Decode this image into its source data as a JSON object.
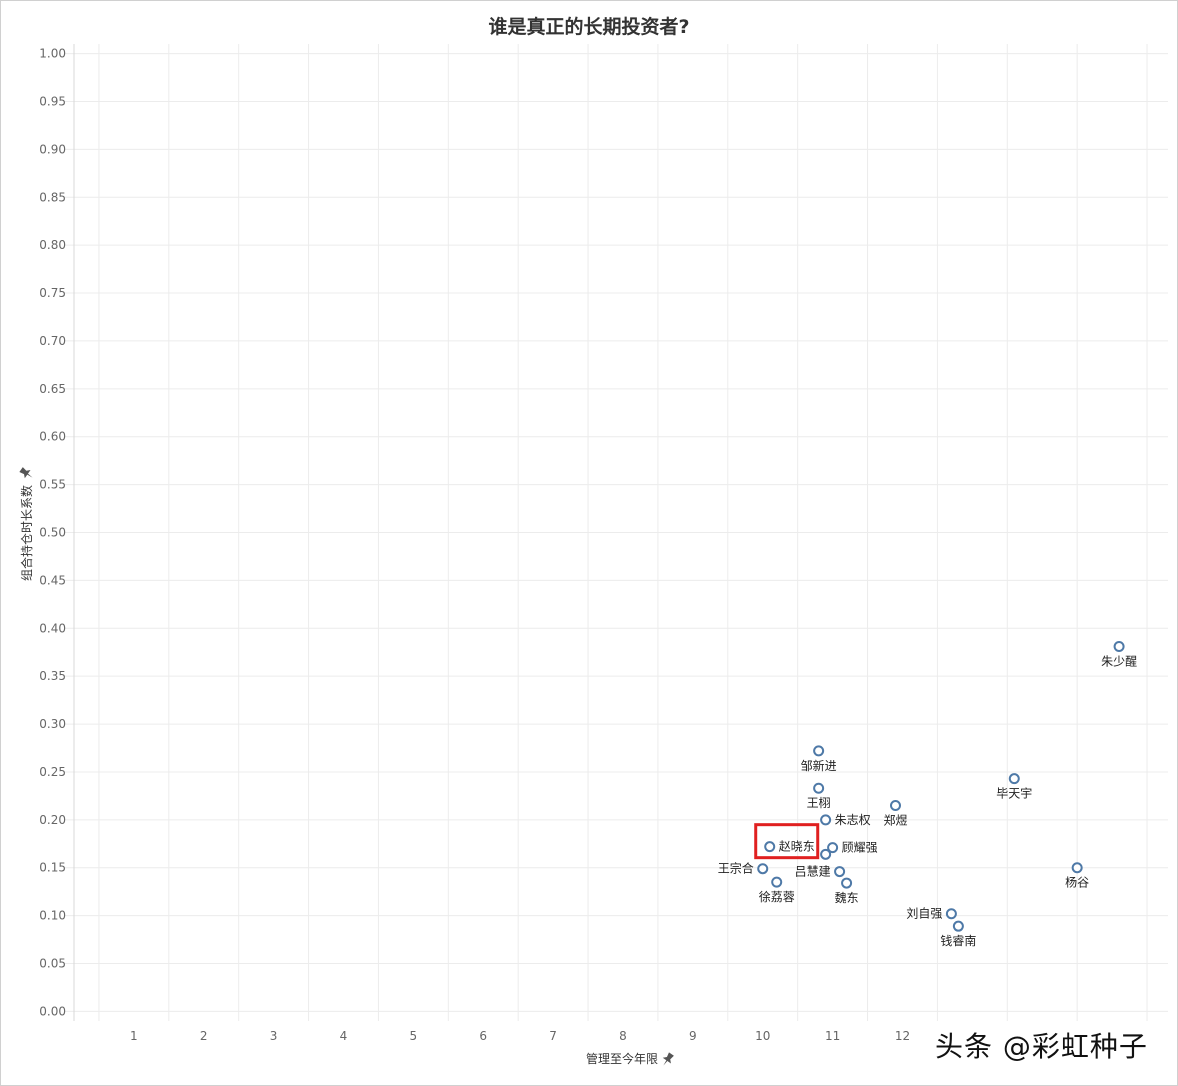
{
  "chart_data": {
    "type": "scatter",
    "title": "谁是真正的长期投资者?",
    "xlabel": "管理至今年限",
    "ylabel": "组合持仓时长系数",
    "xlim": [
      0,
      15.8
    ],
    "ylim": [
      -0.01,
      1.01
    ],
    "xticks": [
      1,
      2,
      3,
      4,
      5,
      6,
      7,
      8,
      9,
      10,
      11,
      12
    ],
    "yticks": [
      "1.00",
      "0.95",
      "0.90",
      "0.85",
      "0.80",
      "0.75",
      "0.70",
      "0.65",
      "0.60",
      "0.55",
      "0.50",
      "0.45",
      "0.40",
      "0.35",
      "0.30",
      "0.25",
      "0.20",
      "0.15",
      "0.10",
      "0.05",
      "0.00"
    ],
    "grid": true,
    "points": [
      {
        "label": "朱少醒",
        "x": 15.1,
        "y": 0.381,
        "label_pos": "below"
      },
      {
        "label": "邹新进",
        "x": 10.8,
        "y": 0.272,
        "label_pos": "below"
      },
      {
        "label": "毕天宇",
        "x": 13.6,
        "y": 0.243,
        "label_pos": "below"
      },
      {
        "label": "王栩",
        "x": 10.8,
        "y": 0.233,
        "label_pos": "below"
      },
      {
        "label": "郑煜",
        "x": 11.9,
        "y": 0.215,
        "label_pos": "below"
      },
      {
        "label": "朱志权",
        "x": 10.9,
        "y": 0.2,
        "label_pos": "right"
      },
      {
        "label": "赵晓东",
        "x": 10.1,
        "y": 0.172,
        "label_pos": "right",
        "highlight": true
      },
      {
        "label": "顾耀强",
        "x": 11.0,
        "y": 0.171,
        "label_pos": "right"
      },
      {
        "label": "吕慧建",
        "x": 10.9,
        "y": 0.164,
        "label_pos": "below-left"
      },
      {
        "label": "杨谷",
        "x": 14.5,
        "y": 0.15,
        "label_pos": "below"
      },
      {
        "label": "王宗合",
        "x": 10.0,
        "y": 0.149,
        "label_pos": "left"
      },
      {
        "label": "魏东",
        "x": 11.1,
        "y": 0.146,
        "label_pos": "none"
      },
      {
        "label": "徐荔蓉",
        "x": 10.2,
        "y": 0.135,
        "label_pos": "below"
      },
      {
        "label": "魏东",
        "x": 11.2,
        "y": 0.134,
        "label_pos": "below"
      },
      {
        "label": "刘自强",
        "x": 12.7,
        "y": 0.102,
        "label_pos": "left"
      },
      {
        "label": "钱睿南",
        "x": 12.8,
        "y": 0.089,
        "label_pos": "below"
      }
    ],
    "colors": {
      "marker": "#4e79a7",
      "highlight_box": "#e02020",
      "grid": "#ececec"
    }
  },
  "watermark": "头条 @彩虹种子",
  "icons": {
    "axis_pin": "pin-icon"
  }
}
